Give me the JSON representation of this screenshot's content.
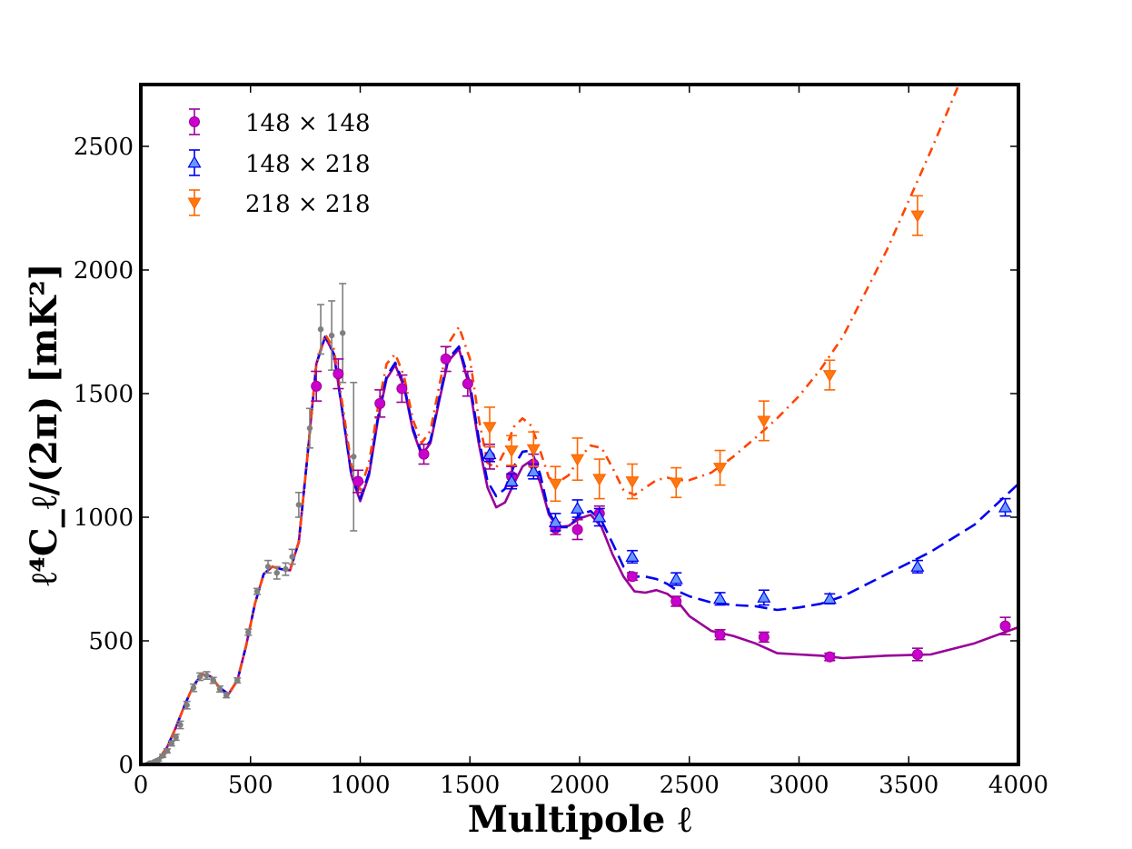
{
  "chart_data": {
    "type": "scatter",
    "title": "",
    "xlabel": "Multipole ℓ",
    "ylabel": "ℓ⁴C_ℓ/(2π) [mK²]",
    "xlim": [
      0,
      4000
    ],
    "ylim": [
      0,
      2750
    ],
    "xticks": [
      0,
      500,
      1000,
      1500,
      2000,
      2500,
      3000,
      3500,
      4000
    ],
    "yticks": [
      0,
      500,
      1000,
      1500,
      2000,
      2500
    ],
    "xtick_labels": [
      "0",
      "500",
      "1000",
      "1500",
      "2000",
      "2500",
      "3000",
      "3500",
      "4000"
    ],
    "ytick_labels": [
      "0",
      "500",
      "1000",
      "1500",
      "2000",
      "2500"
    ],
    "legend_position": "top-left",
    "colors": {
      "s148": "#990099",
      "s148_marker": "#cc00cc",
      "s148x218": "#0000ee",
      "s148x218_marker": "#6699ff",
      "s218": "#ff6600",
      "s218_marker": "#ff7711",
      "s218_line": "#ff4400",
      "lowl": "#7f7f7f"
    },
    "series": [
      {
        "name": "148 × 148",
        "legend_label": "148 × 148",
        "marker": "circle",
        "color_key": "s148",
        "points": [
          [
            800,
            1530,
            60
          ],
          [
            900,
            1580,
            60
          ],
          [
            990,
            1145,
            45
          ],
          [
            1090,
            1460,
            55
          ],
          [
            1190,
            1520,
            55
          ],
          [
            1290,
            1255,
            40
          ],
          [
            1390,
            1640,
            50
          ],
          [
            1490,
            1540,
            50
          ],
          [
            1590,
            1245,
            50
          ],
          [
            1690,
            1165,
            40
          ],
          [
            1790,
            1215,
            40
          ],
          [
            1890,
            955,
            25
          ],
          [
            1990,
            950,
            40
          ],
          [
            2090,
            1015,
            30
          ],
          [
            2240,
            760,
            15
          ],
          [
            2440,
            660,
            20
          ],
          [
            2640,
            525,
            20
          ],
          [
            2840,
            515,
            20
          ],
          [
            3140,
            435,
            15
          ],
          [
            3540,
            445,
            25
          ],
          [
            3940,
            560,
            35
          ]
        ]
      },
      {
        "name": "148 × 218",
        "legend_label": "148 × 218",
        "marker": "triangle-up",
        "color_key": "s148x218",
        "points": [
          [
            1590,
            1255,
            30
          ],
          [
            1690,
            1145,
            30
          ],
          [
            1790,
            1185,
            30
          ],
          [
            1890,
            980,
            35
          ],
          [
            1990,
            1035,
            35
          ],
          [
            2090,
            1000,
            35
          ],
          [
            2240,
            840,
            25
          ],
          [
            2440,
            750,
            25
          ],
          [
            2640,
            670,
            25
          ],
          [
            2840,
            675,
            30
          ],
          [
            3140,
            670,
            20
          ],
          [
            3540,
            800,
            25
          ],
          [
            3940,
            1040,
            35
          ]
        ]
      },
      {
        "name": "218 × 218",
        "legend_label": "218 × 218",
        "marker": "triangle-down",
        "color_key": "s218",
        "points": [
          [
            1590,
            1365,
            80
          ],
          [
            1690,
            1270,
            60
          ],
          [
            1790,
            1275,
            70
          ],
          [
            1890,
            1135,
            70
          ],
          [
            1990,
            1235,
            85
          ],
          [
            2090,
            1155,
            80
          ],
          [
            2240,
            1145,
            70
          ],
          [
            2440,
            1140,
            60
          ],
          [
            2640,
            1200,
            70
          ],
          [
            2840,
            1390,
            80
          ],
          [
            3140,
            1575,
            60
          ],
          [
            3540,
            2220,
            80
          ]
        ]
      },
      {
        "name": "low-ℓ (grey)",
        "marker": "small-circle",
        "color_key": "lowl",
        "points": [
          [
            40,
            5,
            3
          ],
          [
            60,
            10,
            4
          ],
          [
            80,
            18,
            5
          ],
          [
            100,
            35,
            6
          ],
          [
            120,
            55,
            8
          ],
          [
            140,
            85,
            10
          ],
          [
            160,
            110,
            12
          ],
          [
            180,
            160,
            15
          ],
          [
            210,
            240,
            15
          ],
          [
            240,
            310,
            15
          ],
          [
            270,
            355,
            15
          ],
          [
            300,
            360,
            15
          ],
          [
            330,
            340,
            12
          ],
          [
            360,
            305,
            12
          ],
          [
            390,
            280,
            10
          ],
          [
            440,
            340,
            10
          ],
          [
            490,
            535,
            12
          ],
          [
            530,
            700,
            12
          ],
          [
            580,
            800,
            25
          ],
          [
            620,
            775,
            25
          ],
          [
            660,
            790,
            25
          ],
          [
            690,
            840,
            30
          ],
          [
            720,
            1050,
            50
          ],
          [
            770,
            1360,
            80
          ],
          [
            820,
            1760,
            100
          ],
          [
            870,
            1735,
            140
          ],
          [
            920,
            1745,
            200
          ],
          [
            970,
            1245,
            300
          ]
        ]
      }
    ],
    "models": [
      {
        "name": "148 × 148 model",
        "style": "solid",
        "color_key": "s148",
        "x": [
          0,
          40,
          80,
          120,
          160,
          200,
          240,
          280,
          320,
          360,
          400,
          440,
          480,
          520,
          560,
          600,
          640,
          680,
          720,
          760,
          800,
          840,
          880,
          920,
          960,
          1000,
          1040,
          1080,
          1120,
          1160,
          1200,
          1240,
          1280,
          1320,
          1360,
          1400,
          1450,
          1500,
          1540,
          1580,
          1620,
          1660,
          1700,
          1740,
          1780,
          1820,
          1860,
          1900,
          1950,
          2000,
          2050,
          2100,
          2150,
          2200,
          2250,
          2300,
          2350,
          2400,
          2450,
          2500,
          2600,
          2700,
          2800,
          2900,
          3000,
          3100,
          3200,
          3400,
          3600,
          3800,
          4000
        ],
        "y": [
          0,
          5,
          20,
          70,
          150,
          240,
          320,
          365,
          355,
          310,
          285,
          340,
          480,
          650,
          770,
          800,
          790,
          785,
          900,
          1250,
          1620,
          1730,
          1660,
          1420,
          1170,
          1065,
          1170,
          1390,
          1560,
          1615,
          1525,
          1350,
          1250,
          1300,
          1470,
          1630,
          1680,
          1520,
          1300,
          1120,
          1040,
          1060,
          1135,
          1205,
          1230,
          1140,
          1010,
          960,
          965,
          995,
          1010,
          960,
          850,
          760,
          700,
          695,
          705,
          690,
          655,
          600,
          540,
          520,
          490,
          450,
          445,
          440,
          430,
          440,
          445,
          490,
          555
        ]
      },
      {
        "name": "148 × 218 model",
        "style": "dashed",
        "color_key": "s148x218",
        "x": [
          0,
          40,
          80,
          120,
          160,
          200,
          240,
          280,
          320,
          360,
          400,
          440,
          480,
          520,
          560,
          600,
          640,
          680,
          720,
          760,
          800,
          840,
          880,
          920,
          960,
          1000,
          1040,
          1080,
          1120,
          1160,
          1200,
          1240,
          1280,
          1320,
          1360,
          1400,
          1450,
          1500,
          1540,
          1580,
          1620,
          1660,
          1700,
          1740,
          1780,
          1820,
          1860,
          1900,
          1950,
          2000,
          2050,
          2100,
          2150,
          2200,
          2250,
          2300,
          2350,
          2400,
          2450,
          2500,
          2600,
          2700,
          2800,
          2900,
          3000,
          3100,
          3200,
          3400,
          3600,
          3800,
          4000
        ],
        "y": [
          0,
          5,
          20,
          70,
          150,
          240,
          320,
          365,
          355,
          310,
          285,
          340,
          480,
          650,
          770,
          800,
          790,
          785,
          900,
          1250,
          1620,
          1730,
          1660,
          1420,
          1170,
          1075,
          1180,
          1400,
          1570,
          1625,
          1535,
          1360,
          1260,
          1310,
          1480,
          1640,
          1690,
          1540,
          1320,
          1145,
          1085,
          1115,
          1205,
          1265,
          1270,
          1175,
          1020,
          960,
          960,
          1010,
          1025,
          985,
          895,
          800,
          760,
          760,
          750,
          730,
          700,
          680,
          655,
          645,
          640,
          625,
          635,
          650,
          680,
          770,
          860,
          970,
          1135
        ]
      },
      {
        "name": "218 × 218 model",
        "style": "dashdot",
        "color_key": "s218_line",
        "x": [
          0,
          40,
          80,
          120,
          160,
          200,
          240,
          280,
          320,
          360,
          400,
          440,
          480,
          520,
          560,
          600,
          640,
          680,
          720,
          760,
          800,
          840,
          880,
          920,
          960,
          1000,
          1040,
          1080,
          1120,
          1160,
          1200,
          1240,
          1280,
          1320,
          1360,
          1400,
          1450,
          1500,
          1540,
          1580,
          1620,
          1660,
          1700,
          1740,
          1780,
          1820,
          1860,
          1900,
          1950,
          2000,
          2050,
          2100,
          2150,
          2200,
          2250,
          2300,
          2350,
          2400,
          2450,
          2500,
          2600,
          2700,
          2800,
          2900,
          3000,
          3100,
          3200,
          3400,
          3600,
          3800,
          4000
        ],
        "y": [
          0,
          5,
          20,
          70,
          150,
          240,
          320,
          365,
          355,
          310,
          285,
          340,
          480,
          650,
          770,
          800,
          790,
          785,
          900,
          1250,
          1620,
          1740,
          1680,
          1450,
          1210,
          1110,
          1220,
          1440,
          1620,
          1660,
          1570,
          1395,
          1300,
          1350,
          1530,
          1700,
          1770,
          1640,
          1400,
          1220,
          1200,
          1270,
          1365,
          1400,
          1370,
          1270,
          1160,
          1140,
          1170,
          1240,
          1290,
          1280,
          1200,
          1110,
          1090,
          1120,
          1150,
          1160,
          1150,
          1150,
          1180,
          1245,
          1320,
          1400,
          1490,
          1600,
          1730,
          2080,
          2480,
          2900,
          3350
        ]
      }
    ]
  }
}
